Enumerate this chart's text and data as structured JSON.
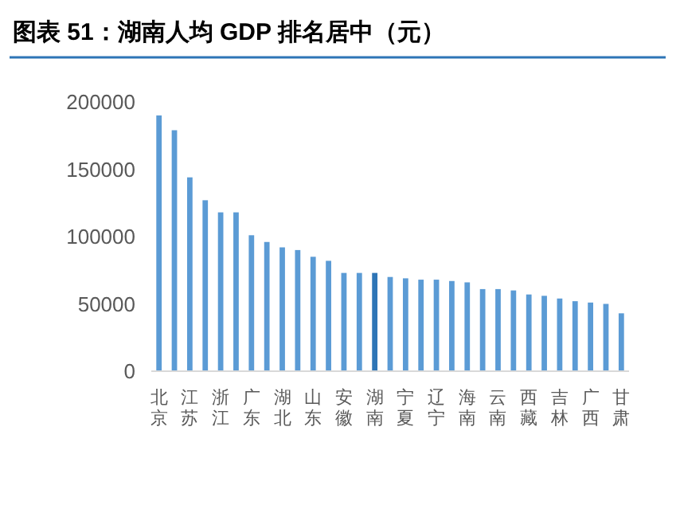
{
  "chart_data": {
    "type": "bar",
    "title": "图表 51：湖南人均 GDP 排名居中（元）",
    "categories": [
      "北京",
      null,
      "江苏",
      null,
      "浙江",
      null,
      "广东",
      null,
      "湖北",
      null,
      "山东",
      null,
      "安徽",
      null,
      "湖南",
      null,
      "宁夏",
      null,
      "辽宁",
      null,
      "海南",
      null,
      "云南",
      null,
      "西藏",
      null,
      "吉林",
      null,
      "广西",
      null,
      "甘肃"
    ],
    "values": [
      190000,
      179000,
      144000,
      127000,
      118000,
      118000,
      101000,
      96000,
      92000,
      90000,
      85000,
      82000,
      73000,
      73000,
      73000,
      70000,
      69000,
      68000,
      68000,
      67000,
      66000,
      61000,
      61000,
      60000,
      57000,
      56000,
      54000,
      52000,
      51000,
      50000,
      43000
    ],
    "colors": [
      "#5b9bd5",
      "#5b9bd5",
      "#5b9bd5",
      "#5b9bd5",
      "#5b9bd5",
      "#5b9bd5",
      "#5b9bd5",
      "#5b9bd5",
      "#5b9bd5",
      "#5b9bd5",
      "#5b9bd5",
      "#5b9bd5",
      "#5b9bd5",
      "#5b9bd5",
      "#2e75b6",
      "#5b9bd5",
      "#5b9bd5",
      "#5b9bd5",
      "#5b9bd5",
      "#5b9bd5",
      "#5b9bd5",
      "#5b9bd5",
      "#5b9bd5",
      "#5b9bd5",
      "#5b9bd5",
      "#5b9bd5",
      "#5b9bd5",
      "#5b9bd5",
      "#5b9bd5",
      "#5b9bd5",
      "#5b9bd5"
    ],
    "ylim": [
      0,
      200000
    ],
    "yticks": [
      0,
      50000,
      100000,
      150000,
      200000
    ],
    "grid": false
  }
}
